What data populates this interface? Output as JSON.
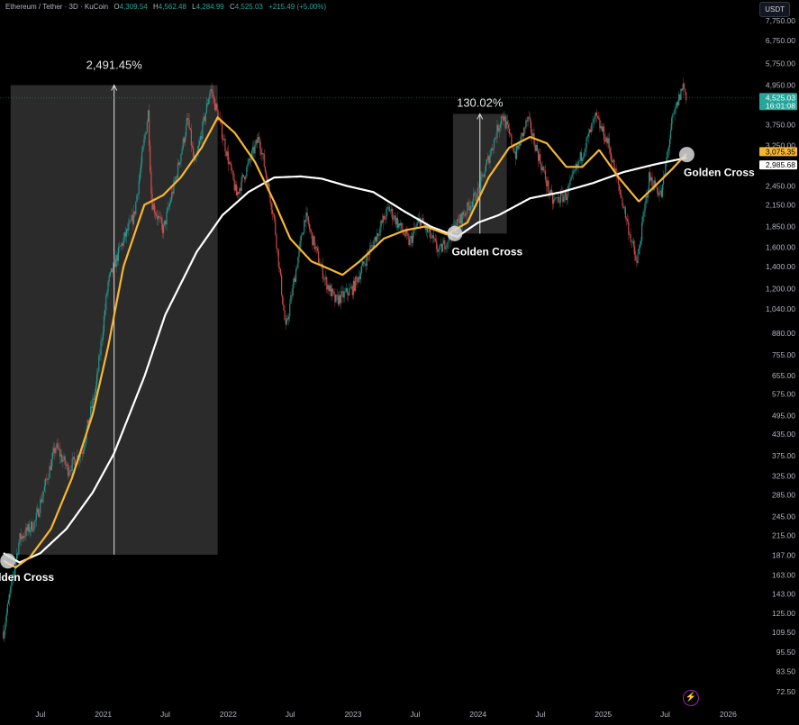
{
  "header": {
    "symbol": "Ethereum / Tether · 3D · KuCoin",
    "open_label": "O",
    "open": "4,309.54",
    "high_label": "H",
    "high": "4,562.48",
    "low_label": "L",
    "low": "4,284.99",
    "close_label": "C",
    "close": "4,525.03",
    "change": "+215.49 (+5.00%)"
  },
  "unit_button": "USDT",
  "colors": {
    "background": "#000000",
    "up_candle": "#26a69a",
    "down_candle": "#ef5350",
    "fast_ma": "#f7b731",
    "slow_ma": "#ffffff",
    "price_tag": "#26a69a",
    "ma_tag_fast": "#f7b731",
    "ma_tag_slow": "#ffffff"
  },
  "chart_data": {
    "type": "line",
    "log_scale": true,
    "grid": false,
    "ylim": [
      68,
      8200
    ],
    "y_ticks": [
      "7,750.00",
      "6,750.00",
      "5,750.00",
      "4,950.00",
      "3,750.00",
      "3,250.00",
      "2,450.00",
      "2,150.00",
      "1,850.00",
      "1,600.00",
      "1,400.00",
      "1,200.00",
      "1,040.00",
      "880.00",
      "755.00",
      "655.00",
      "575.00",
      "495.00",
      "435.00",
      "375.00",
      "325.00",
      "285.00",
      "245.00",
      "215.00",
      "187.00",
      "163.00",
      "143.00",
      "125.00",
      "109.50",
      "95.50",
      "83.50",
      "72.50"
    ],
    "x_ticks": [
      "Jul",
      "2021",
      "Jul",
      "2022",
      "Jul",
      "2023",
      "Jul",
      "2024",
      "Jul",
      "2025",
      "Jul",
      "2026"
    ],
    "price_labels": {
      "last": "4,525.03",
      "countdown": "16:01:08",
      "fast_ma": "3,075.35",
      "slow_ma": "2,985.68"
    },
    "series": [
      {
        "key": "price",
        "values": [
          [
            "2020-03-15",
            110
          ],
          [
            "2020-05-01",
            210
          ],
          [
            "2020-06-15",
            235
          ],
          [
            "2020-08-15",
            400
          ],
          [
            "2020-09-20",
            340
          ],
          [
            "2020-11-01",
            390
          ],
          [
            "2020-12-10",
            600
          ],
          [
            "2021-01-15",
            1250
          ],
          [
            "2021-02-20",
            1600
          ],
          [
            "2021-04-01",
            2000
          ],
          [
            "2021-05-12",
            4100
          ],
          [
            "2021-05-22",
            2200
          ],
          [
            "2021-06-25",
            1800
          ],
          [
            "2021-08-01",
            2600
          ],
          [
            "2021-09-05",
            3900
          ],
          [
            "2021-09-25",
            2800
          ],
          [
            "2021-11-10",
            4850
          ],
          [
            "2021-12-05",
            3900
          ],
          [
            "2022-01-25",
            2300
          ],
          [
            "2022-04-01",
            3450
          ],
          [
            "2022-05-15",
            1950
          ],
          [
            "2022-06-18",
            900
          ],
          [
            "2022-08-14",
            2000
          ],
          [
            "2022-10-10",
            1280
          ],
          [
            "2022-11-10",
            1100
          ],
          [
            "2022-12-31",
            1200
          ],
          [
            "2023-04-15",
            2100
          ],
          [
            "2023-06-15",
            1650
          ],
          [
            "2023-07-15",
            1950
          ],
          [
            "2023-09-10",
            1550
          ],
          [
            "2023-10-20",
            1800
          ],
          [
            "2024-01-01",
            2350
          ],
          [
            "2024-03-12",
            4050
          ],
          [
            "2024-04-20",
            3050
          ],
          [
            "2024-05-25",
            3900
          ],
          [
            "2024-08-05",
            2200
          ],
          [
            "2024-09-15",
            2300
          ],
          [
            "2024-12-10",
            3950
          ],
          [
            "2025-01-15",
            3300
          ],
          [
            "2025-02-28",
            2150
          ],
          [
            "2025-04-09",
            1420
          ],
          [
            "2025-05-15",
            2600
          ],
          [
            "2025-06-20",
            2300
          ],
          [
            "2025-07-20",
            3800
          ],
          [
            "2025-08-22",
            4950
          ],
          [
            "2025-09-02",
            4525
          ]
        ]
      },
      {
        "key": "fast_ma",
        "values": [
          [
            "2020-03-15",
            180
          ],
          [
            "2020-04-20",
            172
          ],
          [
            "2020-06-01",
            185
          ],
          [
            "2020-08-01",
            225
          ],
          [
            "2020-10-01",
            320
          ],
          [
            "2020-12-01",
            500
          ],
          [
            "2021-01-15",
            800
          ],
          [
            "2021-03-01",
            1400
          ],
          [
            "2021-05-01",
            2150
          ],
          [
            "2021-06-25",
            2300
          ],
          [
            "2021-08-15",
            2600
          ],
          [
            "2021-10-15",
            3200
          ],
          [
            "2021-12-01",
            3950
          ],
          [
            "2022-01-20",
            3550
          ],
          [
            "2022-03-20",
            2900
          ],
          [
            "2022-05-15",
            2200
          ],
          [
            "2022-07-01",
            1700
          ],
          [
            "2022-09-01",
            1450
          ],
          [
            "2022-10-20",
            1380
          ],
          [
            "2022-12-01",
            1320
          ],
          [
            "2023-01-20",
            1450
          ],
          [
            "2023-04-01",
            1700
          ],
          [
            "2023-06-01",
            1800
          ],
          [
            "2023-08-01",
            1850
          ],
          [
            "2023-10-01",
            1750
          ],
          [
            "2023-12-01",
            1900
          ],
          [
            "2024-02-01",
            2600
          ],
          [
            "2024-04-01",
            3200
          ],
          [
            "2024-06-01",
            3450
          ],
          [
            "2024-07-20",
            3300
          ],
          [
            "2024-09-15",
            2800
          ],
          [
            "2024-11-01",
            2800
          ],
          [
            "2024-12-20",
            3150
          ],
          [
            "2025-02-15",
            2600
          ],
          [
            "2025-04-15",
            2200
          ],
          [
            "2025-06-01",
            2450
          ],
          [
            "2025-07-20",
            2750
          ],
          [
            "2025-09-02",
            3075
          ]
        ]
      },
      {
        "key": "slow_ma",
        "values": [
          [
            "2020-03-15",
            190
          ],
          [
            "2020-05-01",
            178
          ],
          [
            "2020-07-01",
            190
          ],
          [
            "2020-09-15",
            225
          ],
          [
            "2020-12-01",
            290
          ],
          [
            "2021-02-01",
            380
          ],
          [
            "2021-05-01",
            650
          ],
          [
            "2021-07-01",
            1000
          ],
          [
            "2021-10-01",
            1550
          ],
          [
            "2021-12-15",
            2000
          ],
          [
            "2022-03-01",
            2350
          ],
          [
            "2022-05-15",
            2600
          ],
          [
            "2022-08-01",
            2620
          ],
          [
            "2022-10-01",
            2580
          ],
          [
            "2022-12-15",
            2450
          ],
          [
            "2023-03-01",
            2350
          ],
          [
            "2023-06-01",
            2050
          ],
          [
            "2023-08-15",
            1850
          ],
          [
            "2023-11-01",
            1720
          ],
          [
            "2024-01-01",
            1900
          ],
          [
            "2024-03-01",
            2000
          ],
          [
            "2024-06-01",
            2250
          ],
          [
            "2024-09-01",
            2350
          ],
          [
            "2024-12-01",
            2500
          ],
          [
            "2025-03-01",
            2700
          ],
          [
            "2025-06-01",
            2850
          ],
          [
            "2025-09-02",
            2985
          ]
        ]
      }
    ],
    "annotations": {
      "range_boxes": [
        {
          "label": "2,491.45%",
          "x0": "2020-04-05",
          "x1": "2021-12-01",
          "y0": 188,
          "y1": 4950
        },
        {
          "label": "130.02%",
          "x0": "2023-10-20",
          "x1": "2024-03-25",
          "y0": 1760,
          "y1": 4050
        }
      ],
      "crosses": [
        {
          "label": "Golden Cross",
          "date": "2020-03-28",
          "value": 180
        },
        {
          "label": "Golden Cross",
          "date": "2023-10-25",
          "value": 1760
        },
        {
          "label": "Golden Cross",
          "date": "2025-09-02",
          "value": 3050
        }
      ]
    }
  }
}
